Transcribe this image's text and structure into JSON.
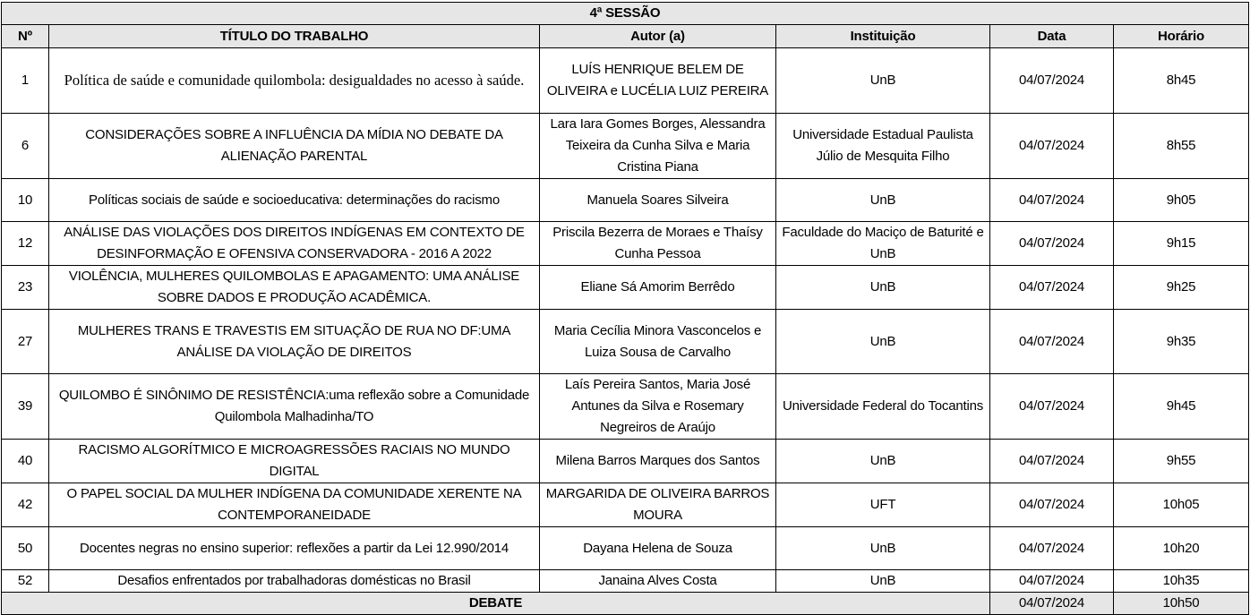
{
  "session_title": "4ª SESSÃO",
  "headers": [
    "Nº",
    "TÍTULO DO TRABALHO",
    "Autor (a)",
    "Instituição",
    "Data",
    "Horário"
  ],
  "rows": [
    {
      "n": "1",
      "title": "Política de saúde e comunidade quilombola: desigualdades no acesso à saúde.",
      "author": "LUÍS HENRIQUE BELEM DE OLIVEIRA e LUCÉLIA LUIZ PEREIRA",
      "inst": "UnB",
      "date": "04/07/2024",
      "time": "8h45"
    },
    {
      "n": "6",
      "title": "CONSIDERAÇÕES SOBRE A INFLUÊNCIA DA MÍDIA NO DEBATE DA ALIENAÇÃO PARENTAL",
      "author": "Lara Iara Gomes Borges, Alessandra Teixeira da Cunha Silva e Maria Cristina Piana",
      "inst": "Universidade Estadual Paulista Júlio de Mesquita Filho",
      "date": "04/07/2024",
      "time": "8h55"
    },
    {
      "n": "10",
      "title": "Políticas sociais de saúde e socioeducativa: determinações do racismo",
      "author": "Manuela Soares Silveira",
      "inst": "UnB",
      "date": "04/07/2024",
      "time": "9h05"
    },
    {
      "n": "12",
      "title": "ANÁLISE DAS VIOLAÇÕES DOS DIREITOS INDÍGENAS EM CONTEXTO DE DESINFORMAÇÃO E OFENSIVA CONSERVADORA - 2016 A 2022",
      "author": "Priscila Bezerra de Moraes e Thaísy Cunha Pessoa",
      "inst": "Faculdade do Maciço de Baturité e UnB",
      "date": "04/07/2024",
      "time": "9h15"
    },
    {
      "n": "23",
      "title": "VIOLÊNCIA, MULHERES QUILOMBOLAS E APAGAMENTO: UMA ANÁLISE SOBRE DADOS E PRODUÇÃO ACADÊMICA.",
      "author": "Eliane Sá Amorim Berrêdo",
      "inst": "UnB",
      "date": "04/07/2024",
      "time": "9h25"
    },
    {
      "n": "27",
      "title": "MULHERES TRANS E TRAVESTIS EM SITUAÇÃO DE RUA NO DF:UMA ANÁLISE DA VIOLAÇÃO DE DIREITOS",
      "author": "Maria Cecília Minora Vasconcelos e Luiza Sousa de Carvalho",
      "inst": "UnB",
      "date": "04/07/2024",
      "time": "9h35"
    },
    {
      "n": "39",
      "title": "QUILOMBO É SINÔNIMO DE RESISTÊNCIA:uma reflexão sobre a Comunidade Quilombola Malhadinha/TO",
      "author": "Laís Pereira Santos, Maria José Antunes da Silva e Rosemary Negreiros de Araújo",
      "inst": "Universidade Federal do Tocantins",
      "date": "04/07/2024",
      "time": "9h45"
    },
    {
      "n": "40",
      "title": "RACISMO ALGORÍTMICO E MICROAGRESSÕES RACIAIS NO MUNDO DIGITAL",
      "author": "Milena Barros Marques dos Santos",
      "inst": "UnB",
      "date": "04/07/2024",
      "time": "9h55"
    },
    {
      "n": "42",
      "title": "O PAPEL SOCIAL DA MULHER INDÍGENA DA COMUNIDADE XERENTE NA CONTEMPORANEIDADE",
      "author": "MARGARIDA DE OLIVEIRA BARROS MOURA",
      "inst": "UFT",
      "date": "04/07/2024",
      "time": "10h05"
    },
    {
      "n": "50",
      "title": "Docentes negras no ensino superior: reflexões a partir da Lei 12.990/2014",
      "author": "Dayana Helena de Souza",
      "inst": "UnB",
      "date": "04/07/2024",
      "time": "10h20"
    },
    {
      "n": "52",
      "title": "Desafios enfrentados por trabalhadoras domésticas no Brasil",
      "author": "Janaina Alves Costa",
      "inst": "UnB",
      "date": "04/07/2024",
      "time": "10h35"
    }
  ],
  "debate": {
    "label": "DEBATE",
    "date": "04/07/2024",
    "time": "10h50"
  }
}
